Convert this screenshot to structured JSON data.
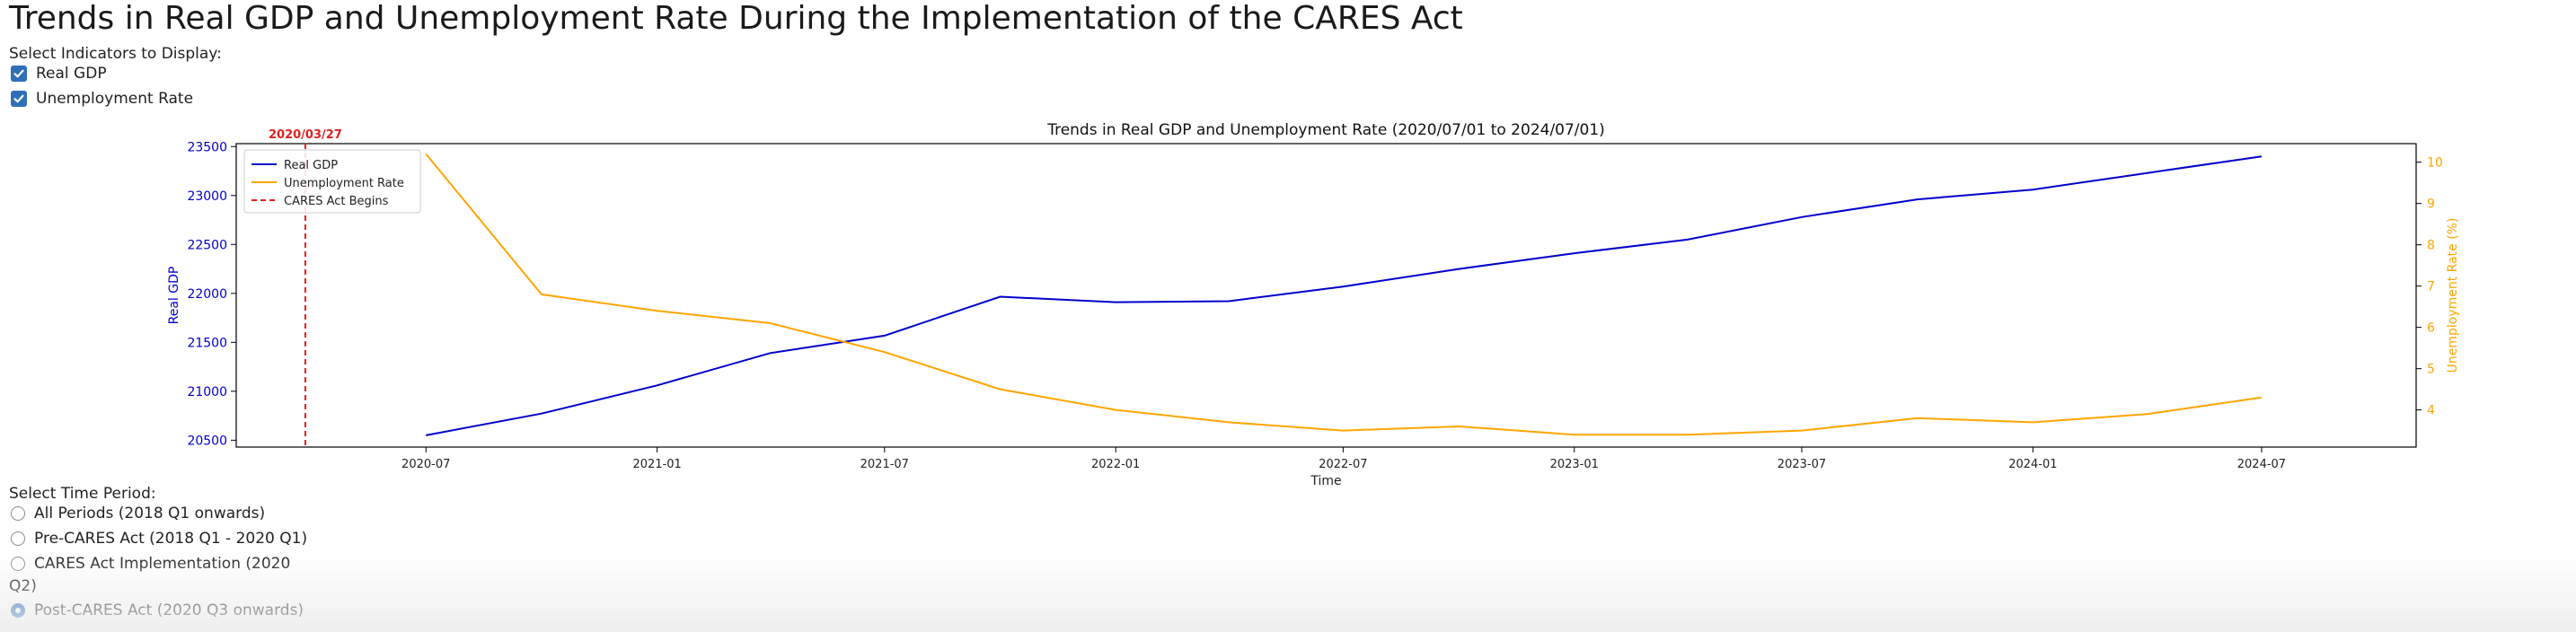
{
  "page": {
    "title": "Trends in Real GDP and Unemployment Rate During the Implementation of the CARES Act"
  },
  "indicators": {
    "label": "Select Indicators to Display:",
    "options": [
      {
        "label": "Real GDP",
        "checked": true
      },
      {
        "label": "Unemployment Rate",
        "checked": true
      }
    ]
  },
  "time_period": {
    "label": "Select Time Period:",
    "options": [
      {
        "label": "All Periods (2018 Q1 onwards)",
        "selected": false
      },
      {
        "label": "Pre-CARES Act (2018 Q1 - 2020 Q1)",
        "selected": false
      },
      {
        "label": "CARES Act Implementation (2020 Q2)",
        "label_line1": "CARES Act Implementation (2020",
        "label_line2": "Q2)",
        "selected": false
      },
      {
        "label": "Post-CARES Act (2020 Q3 onwards)",
        "selected": true
      }
    ]
  },
  "chart_data": {
    "type": "line",
    "title": "Trends in Real GDP and Unemployment Rate (2020/07/01 to 2024/07/01)",
    "xlabel": "Time",
    "ylabel_left": "Real GDP",
    "ylabel_right": "Unemployment Rate (%)",
    "x": [
      "2020-07-01",
      "2020-10-01",
      "2021-01-01",
      "2021-04-01",
      "2021-07-01",
      "2021-10-01",
      "2022-01-01",
      "2022-04-01",
      "2022-07-01",
      "2022-10-01",
      "2023-01-01",
      "2023-04-01",
      "2023-07-01",
      "2023-10-01",
      "2024-01-01",
      "2024-04-01",
      "2024-07-01"
    ],
    "x_ticks": [
      "2020-07",
      "2021-01",
      "2021-07",
      "2022-01",
      "2022-07",
      "2023-01",
      "2023-07",
      "2024-01",
      "2024-07"
    ],
    "xlim": [
      "2020-02-01",
      "2024-11-01"
    ],
    "y_left_lim": [
      20430,
      23530
    ],
    "y_left_ticks": [
      20500,
      21000,
      21500,
      22000,
      22500,
      23000,
      23500
    ],
    "y_right_lim": [
      3.1,
      10.45
    ],
    "y_right_ticks": [
      4,
      5,
      6,
      7,
      8,
      9,
      10
    ],
    "series": [
      {
        "name": "Real GDP",
        "axis": "left",
        "color": "#0000cc",
        "values": [
          20550,
          20772,
          21060,
          21390,
          21568,
          21966,
          21910,
          21920,
          22070,
          22250,
          22410,
          22550,
          22780,
          22960,
          23060,
          23230,
          23400
        ]
      },
      {
        "name": "Unemployment Rate",
        "axis": "right",
        "color": "#ffa500",
        "values": [
          10.2,
          6.8,
          6.4,
          6.1,
          5.4,
          4.5,
          4.0,
          3.7,
          3.5,
          3.6,
          3.4,
          3.4,
          3.5,
          3.8,
          3.7,
          3.9,
          4.3
        ]
      }
    ],
    "annotation": {
      "name": "CARES Act Begins",
      "date": "2020-03-27",
      "label": "2020/03/27",
      "color": "#e02020"
    },
    "legend_position": "top-left",
    "grid": false
  },
  "colors": {
    "left_axis": "#0000cc",
    "right_axis": "#ffa500",
    "control_accent": "#2f6fb8"
  }
}
